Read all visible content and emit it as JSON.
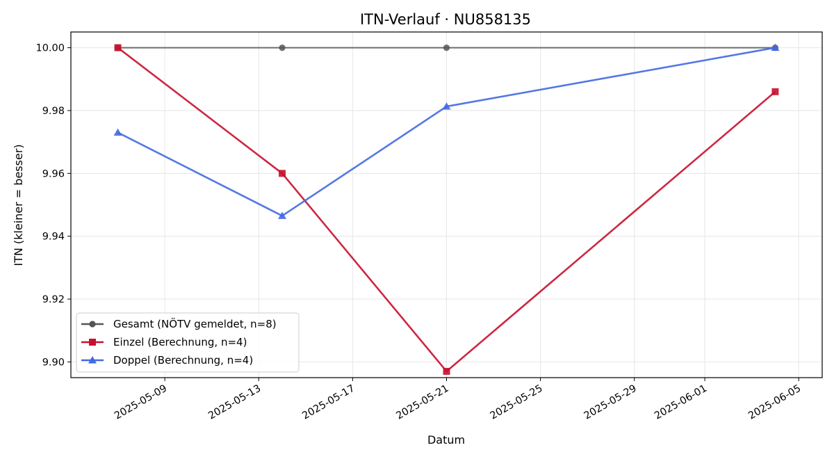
{
  "chart_data": {
    "type": "line",
    "title": "ITN-Verlauf · NU858135",
    "xlabel": "Datum",
    "ylabel": "ITN  (kleiner = besser)",
    "x_ticks": [
      "2025-05-09",
      "2025-05-13",
      "2025-05-17",
      "2025-05-21",
      "2025-05-25",
      "2025-05-29",
      "2025-06-01",
      "2025-06-05"
    ],
    "y_ticks": [
      "9.90",
      "9.92",
      "9.94",
      "9.96",
      "9.98",
      "10.00"
    ],
    "ylim": [
      9.895,
      10.005
    ],
    "xlim": [
      "2025-05-05",
      "2025-06-06"
    ],
    "grid": true,
    "legend_position": "lower-left",
    "series": [
      {
        "name": "Gesamt (NÖTV gemeldet, n=8)",
        "color": "#555555",
        "marker": "circle",
        "x": [
          "2025-05-07",
          "2025-05-14",
          "2025-05-21",
          "2025-06-04"
        ],
        "y": [
          10.0,
          10.0,
          10.0,
          10.0
        ]
      },
      {
        "name": "Einzel (Berechnung, n=4)",
        "color": "#c8102e",
        "marker": "square",
        "x": [
          "2025-05-07",
          "2025-05-14",
          "2025-05-21",
          "2025-06-04"
        ],
        "y": [
          10.0,
          9.96,
          9.897,
          9.986
        ]
      },
      {
        "name": "Doppel (Berechnung, n=4)",
        "color": "#4169e1",
        "marker": "triangle",
        "x": [
          "2025-05-07",
          "2025-05-14",
          "2025-05-21",
          "2025-06-04"
        ],
        "y": [
          9.973,
          9.9465,
          9.9813,
          10.0
        ]
      }
    ]
  }
}
